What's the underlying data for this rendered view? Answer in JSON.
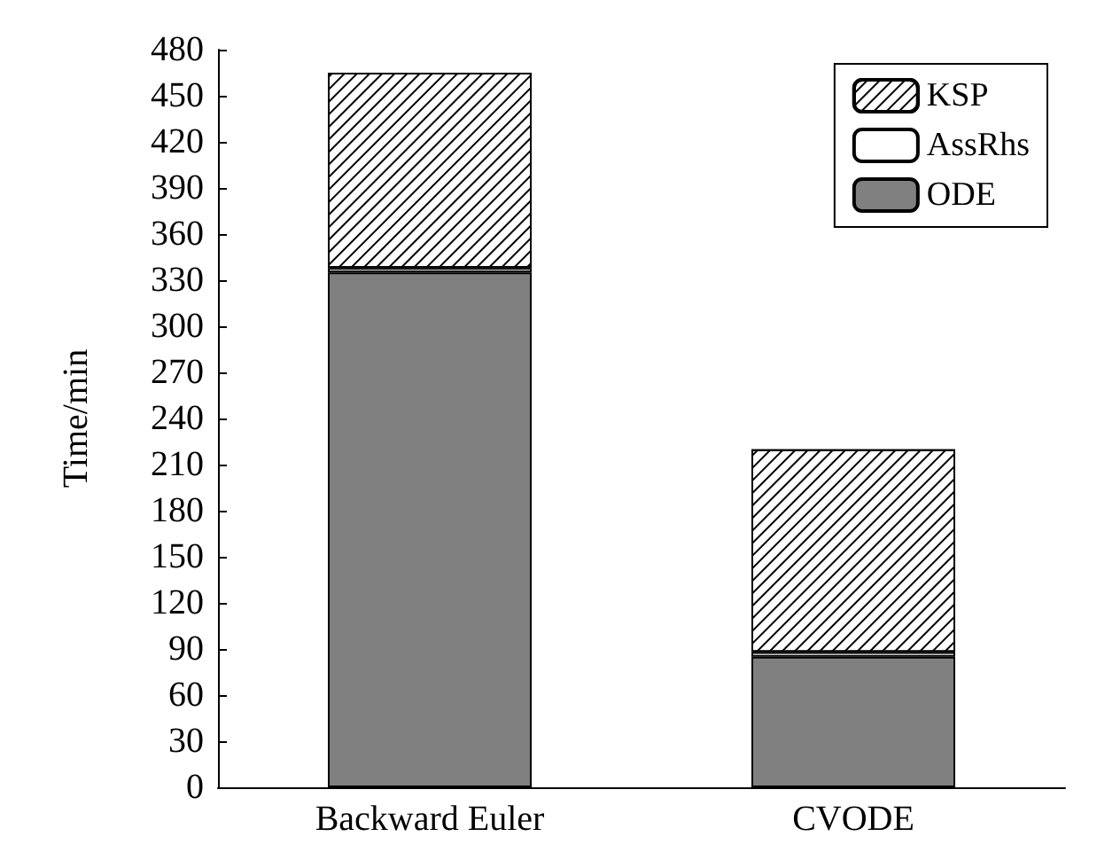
{
  "chart_data": {
    "type": "bar",
    "stacked": true,
    "ylabel": "Time/min",
    "categories": [
      "Backward Euler",
      "CVODE"
    ],
    "series": [
      {
        "name": "ODE",
        "color": "#808080",
        "values": [
          335,
          85
        ]
      },
      {
        "name": "AssRhs",
        "color": "#ffffff",
        "values": [
          3,
          3
        ]
      },
      {
        "name": "KSP",
        "color": "#ffffff",
        "values": [
          127,
          132
        ]
      }
    ],
    "ylim": [
      0,
      480
    ],
    "yticks": [
      0,
      30,
      60,
      90,
      120,
      150,
      180,
      210,
      240,
      270,
      300,
      330,
      360,
      390,
      420,
      450,
      480
    ],
    "grid": false,
    "legend": "top right"
  }
}
